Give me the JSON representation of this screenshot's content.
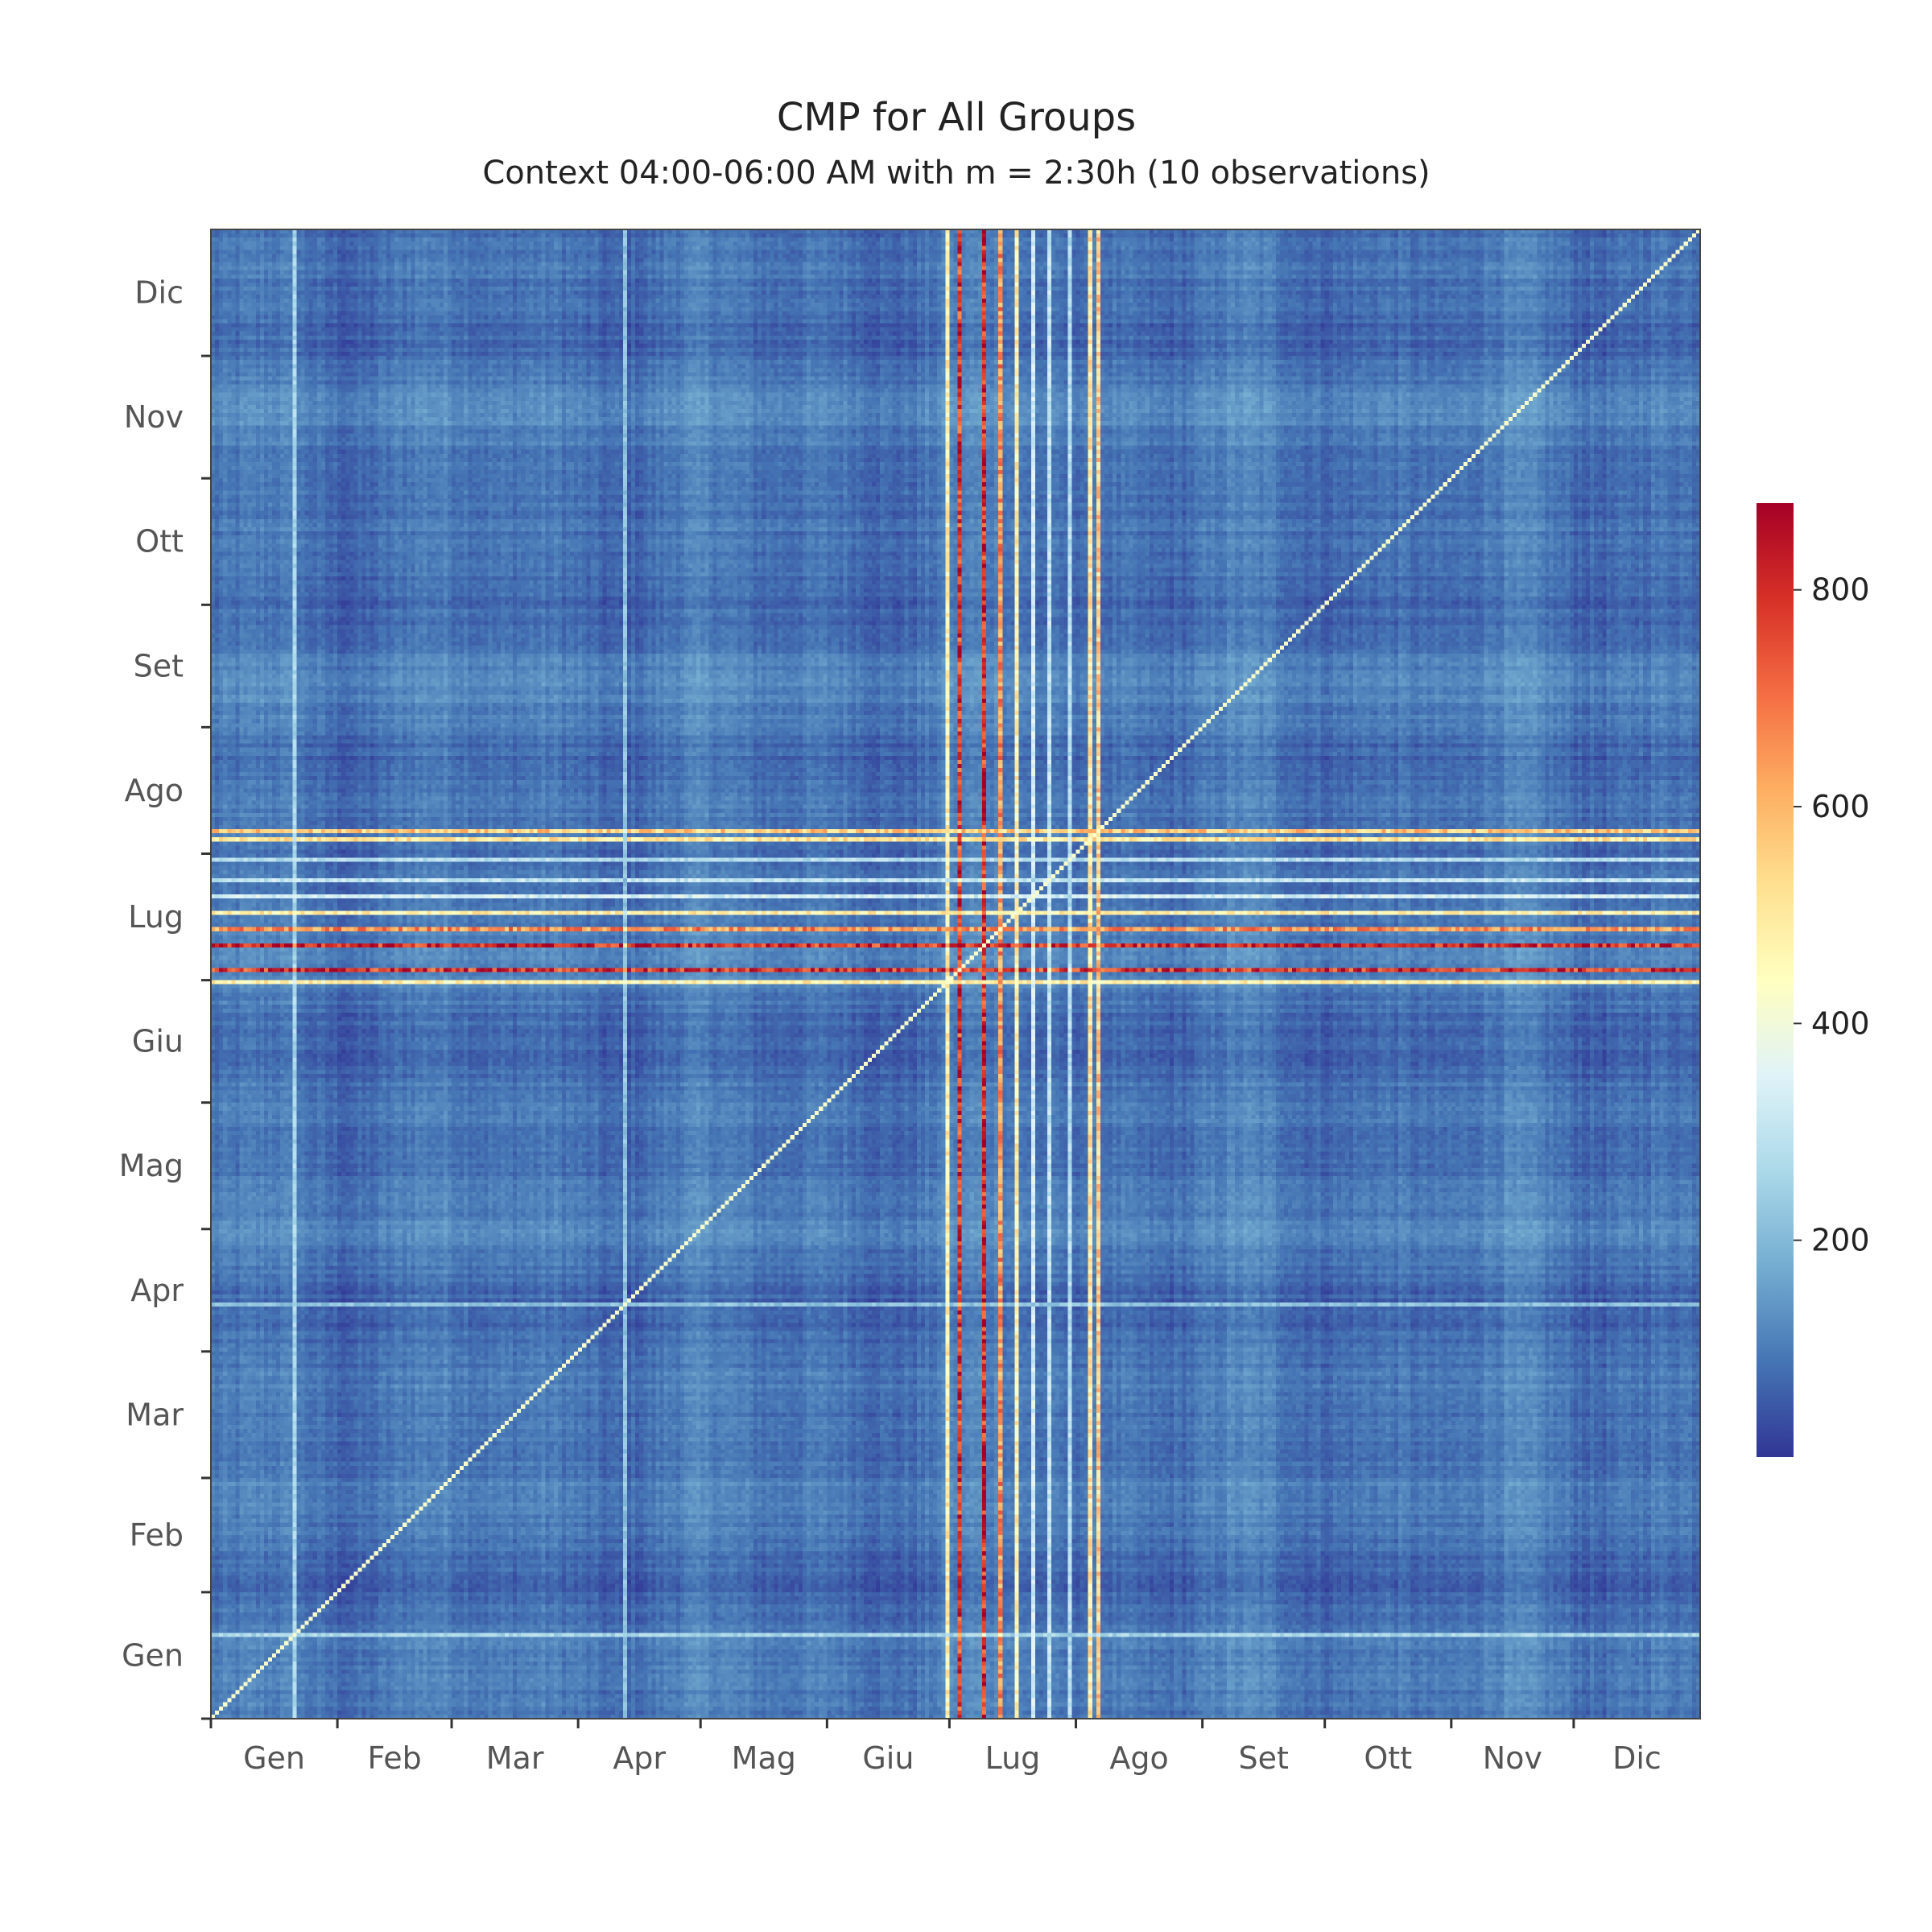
{
  "chart_data": {
    "type": "heatmap",
    "title": "CMP for All Groups",
    "subtitle": "Context 04:00-06:00 AM with m = 2:30h (10 observations)",
    "xlabel": "",
    "ylabel": "",
    "x_ticks": [
      "Gen",
      "Feb",
      "Mar",
      "Apr",
      "Mag",
      "Giu",
      "Lug",
      "Ago",
      "Set",
      "Ott",
      "Nov",
      "Dic"
    ],
    "y_ticks": [
      "Gen",
      "Feb",
      "Mar",
      "Apr",
      "Mag",
      "Giu",
      "Lug",
      "Ago",
      "Set",
      "Ott",
      "Nov",
      "Dic"
    ],
    "month_day_counts": [
      31,
      28,
      31,
      30,
      31,
      30,
      31,
      31,
      30,
      31,
      30,
      31
    ],
    "n_days": 365,
    "colorscale": "RdYlBu_r",
    "colorscale_stops": [
      "#313695",
      "#4575b4",
      "#74add1",
      "#abd9e9",
      "#e0f3f8",
      "#ffffbf",
      "#fee090",
      "#fdae61",
      "#f46d43",
      "#d73027",
      "#a50026"
    ],
    "zrange": [
      0,
      880
    ],
    "colorbar_ticks": [
      200,
      400,
      600,
      800
    ],
    "background_level": 90,
    "diagonal_value": 420,
    "highlight_bands": [
      {
        "day": 180,
        "value": 480
      },
      {
        "day": 183,
        "value": 780
      },
      {
        "day": 189,
        "value": 800
      },
      {
        "day": 193,
        "value": 650
      },
      {
        "day": 197,
        "value": 480
      },
      {
        "day": 201,
        "value": 330
      },
      {
        "day": 205,
        "value": 300
      },
      {
        "day": 210,
        "value": 280
      },
      {
        "day": 215,
        "value": 500
      },
      {
        "day": 217,
        "value": 560
      }
    ],
    "minor_bands": [
      {
        "day": 20,
        "value": 260
      },
      {
        "day": 101,
        "value": 220
      }
    ]
  }
}
